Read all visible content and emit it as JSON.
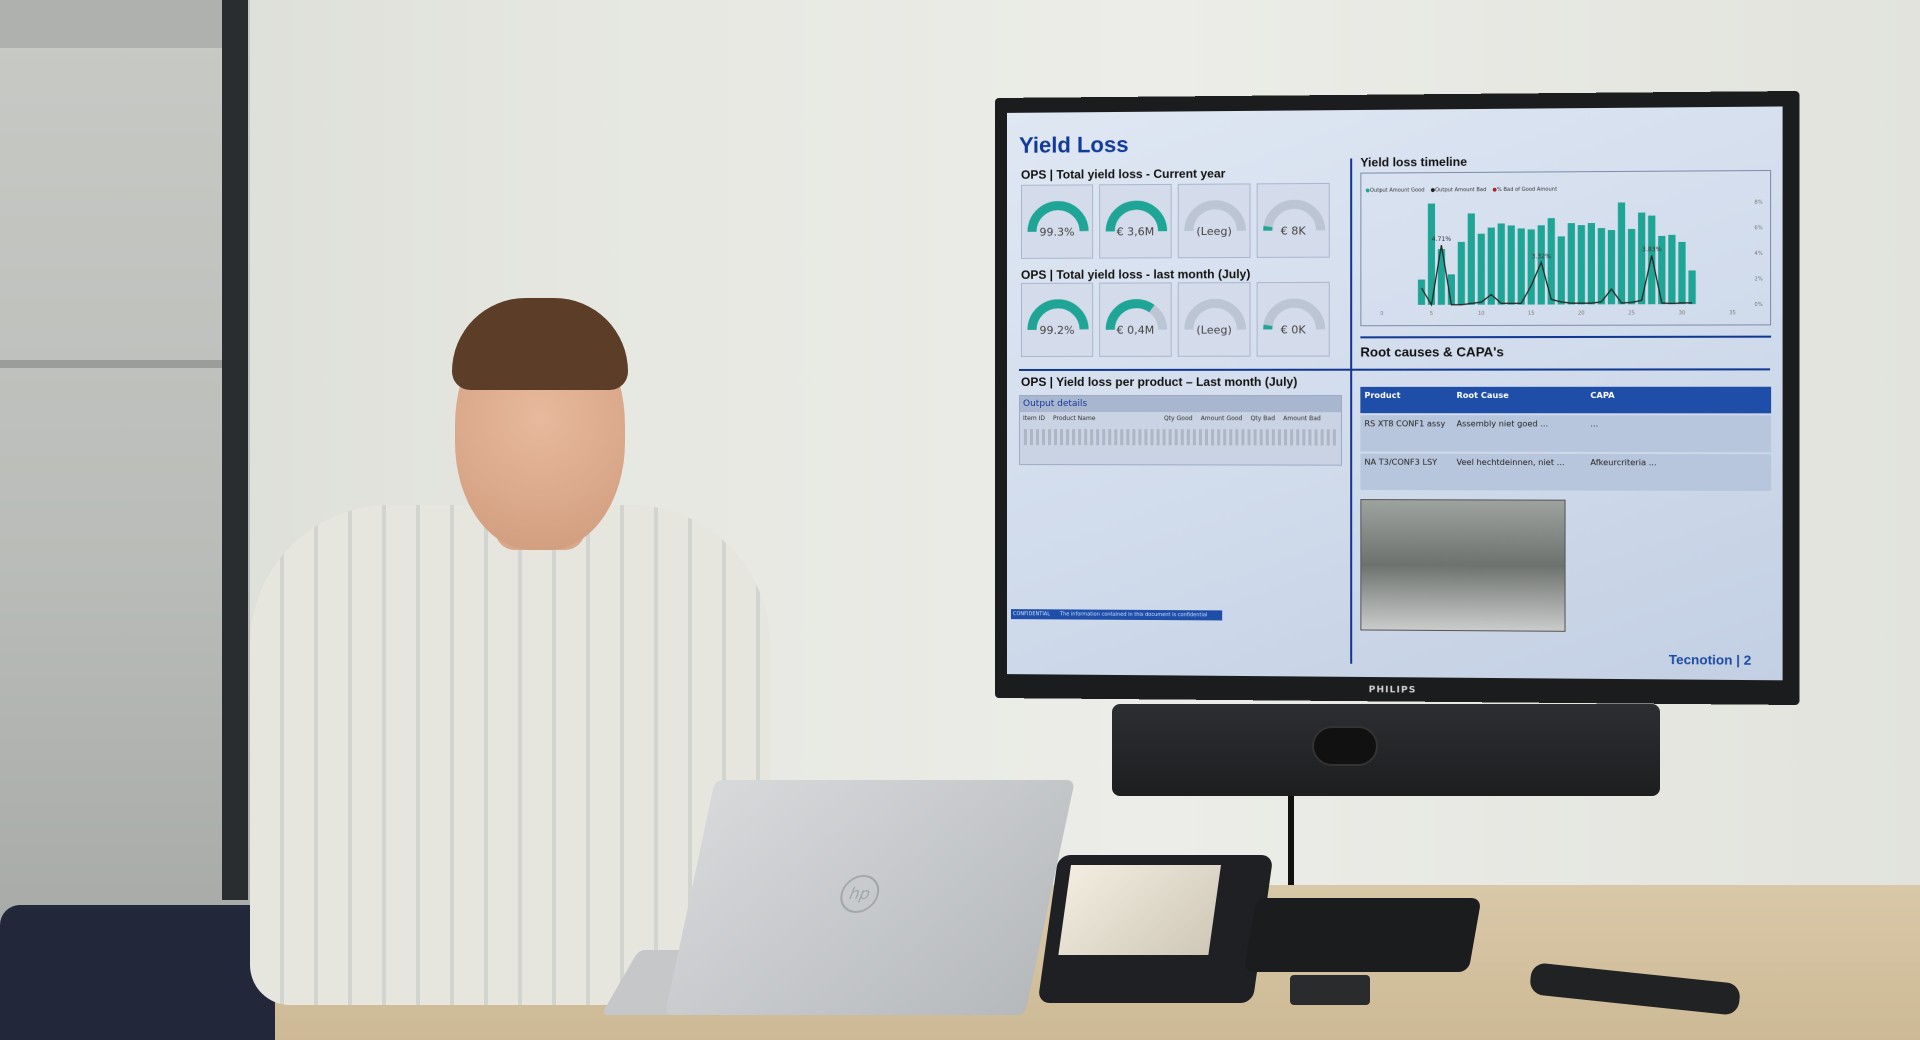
{
  "screen": {
    "brand": "PHILIPS",
    "title": "Yield Loss",
    "section_current_year": "OPS | Total yield loss - Current year",
    "section_last_month": "OPS | Total yield loss - last month (July)",
    "gauges_current_year": [
      {
        "value": "99.3%",
        "fill": 0.99
      },
      {
        "value": "€ 3,6M",
        "fill": 1.0
      },
      {
        "value": "(Leeg)",
        "fill": 0
      },
      {
        "value": "€ 8K",
        "fill": 0.05
      }
    ],
    "gauges_last_month": [
      {
        "value": "99.2%",
        "fill": 0.99
      },
      {
        "value": "€ 0,4M",
        "fill": 0.7
      },
      {
        "value": "(Leeg)",
        "fill": 0
      },
      {
        "value": "€ 0K",
        "fill": 0.05
      }
    ],
    "per_product_title": "OPS | Yield loss per product – Last month (July)",
    "output_details": {
      "title": "Output details",
      "columns": [
        "Item ID",
        "Product Name",
        "Qty Good",
        "Amount Good",
        "Qty Bad",
        "Amount Bad"
      ]
    },
    "timeline": {
      "title": "Yield loss timeline",
      "legend": [
        "Output Amount Good",
        "Output Amount Bad",
        "% Bad of Good Amount"
      ],
      "colors": {
        "good": "#1fa595",
        "bad": "#1a1a1a",
        "pct": "#b02030"
      },
      "chart_data": {
        "type": "bar",
        "x": [
          4,
          5,
          6,
          7,
          8,
          9,
          10,
          11,
          12,
          13,
          14,
          15,
          16,
          17,
          18,
          19,
          20,
          21,
          22,
          23,
          24,
          25,
          26,
          27,
          28,
          29,
          30,
          31
        ],
        "series": [
          {
            "name": "Output Amount Good",
            "values": [
              0.25,
              1.0,
              0.55,
              0.3,
              0.62,
              0.9,
              0.7,
              0.76,
              0.8,
              0.78,
              0.75,
              0.74,
              0.78,
              0.85,
              0.67,
              0.8,
              0.78,
              0.8,
              0.75,
              0.73,
              1.0,
              0.74,
              0.9,
              0.87,
              0.67,
              0.68,
              0.61,
              0.33
            ]
          },
          {
            "name": "% Bad of Good Amount",
            "values": [
              1.33,
              0.0,
              4.71,
              0.0,
              0.0,
              0.1,
              0.2,
              0.8,
              0.1,
              0.1,
              0.1,
              1.5,
              3.32,
              0.4,
              0.2,
              0.1,
              0.1,
              0.1,
              0.2,
              1.2,
              0.1,
              0.15,
              0.3,
              3.83,
              0.1,
              0.05,
              0.1,
              0.1
            ]
          }
        ],
        "point_labels": [
          {
            "x": 6,
            "label": "4.71%"
          },
          {
            "x": 16,
            "label": "3.32%"
          },
          {
            "x": 27,
            "label": "3.83%"
          }
        ],
        "x_ticks": [
          0,
          5,
          10,
          15,
          20,
          25,
          30,
          35
        ],
        "y2_ticks": [
          "0%",
          "2%",
          "4%",
          "6%",
          "8%"
        ],
        "xlim": [
          0,
          35
        ],
        "y2lim": [
          0,
          8
        ]
      }
    },
    "root_causes": {
      "title": "Root causes & CAPA's",
      "columns": [
        "Product",
        "Root Cause",
        "CAPA"
      ],
      "rows": [
        [
          "RS XT8 CONF1 assy",
          "Assembly niet goed ...",
          "..."
        ],
        [
          "NA T3/CONF3 LSY",
          "Veel hechtdeinnen, niet ...",
          "Afkeurcriteria ..."
        ]
      ]
    },
    "footer_confidential": "CONFIDENTIAL",
    "footer_note": "The information contained in this document is confidential",
    "footer_brand": "Tecnotion",
    "page_number": "2"
  },
  "laptop_logo": "hp"
}
